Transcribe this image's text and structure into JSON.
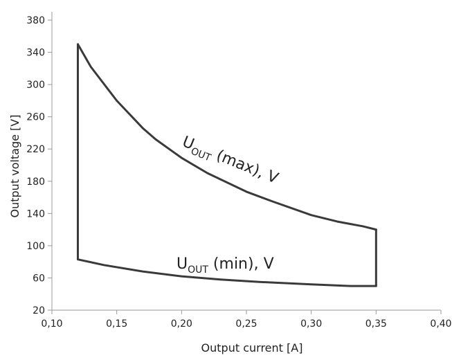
{
  "chart_data": {
    "type": "line",
    "xlabel": "Output current [A]",
    "ylabel": "Output voltage [V]",
    "xlim": [
      0.1,
      0.4
    ],
    "ylim": [
      20,
      380
    ],
    "x_ticks": [
      "0,10",
      "0,15",
      "0,20",
      "0,25",
      "0,30",
      "0,35",
      "0,40"
    ],
    "y_ticks": [
      "20",
      "60",
      "100",
      "140",
      "180",
      "220",
      "260",
      "300",
      "340",
      "380"
    ],
    "grid": false,
    "legend": "none",
    "series": [
      {
        "name": "U_OUT (max), V",
        "x": [
          0.12,
          0.13,
          0.15,
          0.17,
          0.18,
          0.2,
          0.22,
          0.25,
          0.27,
          0.3,
          0.32,
          0.34,
          0.35
        ],
        "y": [
          350,
          322,
          280,
          246,
          232,
          209,
          190,
          167,
          155,
          138,
          130,
          124,
          120
        ]
      },
      {
        "name": "U_OUT (min), V",
        "x": [
          0.12,
          0.14,
          0.17,
          0.2,
          0.23,
          0.26,
          0.3,
          0.33,
          0.35
        ],
        "y": [
          83,
          76,
          68,
          62,
          58,
          55,
          52,
          50,
          50
        ]
      },
      {
        "name": "",
        "x": [
          0.12,
          0.12
        ],
        "y": [
          83,
          350
        ]
      },
      {
        "name": "",
        "x": [
          0.35,
          0.35
        ],
        "y": [
          50,
          120
        ]
      }
    ],
    "annotations": [
      {
        "main": "U",
        "sub": "OUT",
        "rest": " (max), V"
      },
      {
        "main": "U",
        "sub": "OUT",
        "rest": " (min), V"
      }
    ],
    "line_color": "#3a3a3a",
    "axis_color": "#999999"
  }
}
